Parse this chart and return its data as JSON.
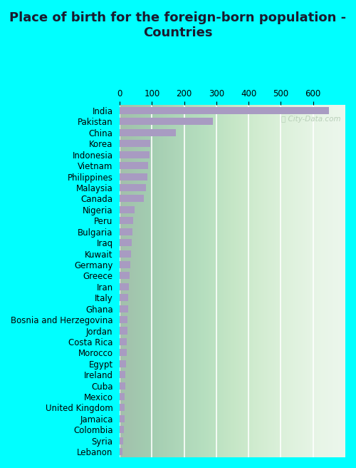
{
  "title": "Place of birth for the foreign-born population -\nCountries",
  "categories": [
    "India",
    "Pakistan",
    "China",
    "Korea",
    "Indonesia",
    "Vietnam",
    "Philippines",
    "Malaysia",
    "Canada",
    "Nigeria",
    "Peru",
    "Bulgaria",
    "Iraq",
    "Kuwait",
    "Germany",
    "Greece",
    "Iran",
    "Italy",
    "Ghana",
    "Bosnia and Herzegovina",
    "Jordan",
    "Costa Rica",
    "Morocco",
    "Egypt",
    "Ireland",
    "Cuba",
    "Mexico",
    "United Kingdom",
    "Jamaica",
    "Colombia",
    "Syria",
    "Lebanon"
  ],
  "values": [
    650,
    290,
    175,
    95,
    92,
    88,
    85,
    82,
    75,
    45,
    42,
    40,
    38,
    35,
    33,
    30,
    28,
    27,
    26,
    24,
    23,
    22,
    21,
    20,
    18,
    17,
    16,
    15,
    14,
    13,
    10,
    8
  ],
  "bar_color": "#a89bc2",
  "plot_bg_color": "#e8f5e9",
  "outer_bg_color": "#00ffff",
  "xlim": [
    0,
    700
  ],
  "xticks": [
    0,
    100,
    200,
    300,
    400,
    500,
    600
  ],
  "title_fontsize": 13,
  "tick_fontsize": 8.5
}
